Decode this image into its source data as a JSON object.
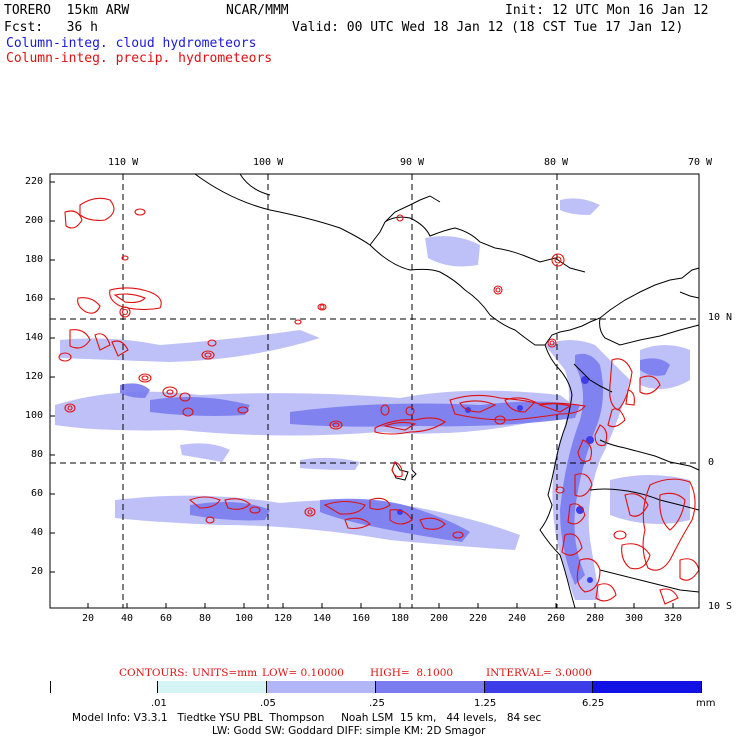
{
  "header": {
    "model": "TORERO  15km ARW",
    "org": "NCAR/MMM",
    "init": "Init: 12 UTC Mon 16 Jan 12",
    "fcst": "Fcst:   36 h",
    "valid": "Valid: 00 UTC Wed 18 Jan 12 (18 CST Tue 17 Jan 12)",
    "field1": "Column-integ. cloud hydrometeors",
    "field2": "Column-integ. precip. hydrometeors"
  },
  "colors": {
    "cloud": "#1a1ad6",
    "precip": "#e01010"
  },
  "map": {
    "lon_labels": [
      "110 W",
      "100 W",
      "90 W",
      "80 W",
      "70 W"
    ],
    "lat_labels": [
      "10 N",
      "0",
      "10 S"
    ],
    "y_ticks": [
      "220",
      "200",
      "180",
      "160",
      "140",
      "120",
      "100",
      "80",
      "60",
      "40",
      "20"
    ],
    "x_ticks": [
      "20",
      "40",
      "60",
      "80",
      "100",
      "120",
      "140",
      "160",
      "180",
      "200",
      "220",
      "240",
      "260",
      "280",
      "300",
      "320"
    ]
  },
  "contour_info": {
    "label": "CONTOURS:",
    "units": "UNITS=mm",
    "low": "LOW= 0.10000",
    "high": "HIGH=  8.1000",
    "interval": "INTERVAL= 3.0000"
  },
  "colorbar": {
    "labels": [
      ".01",
      ".05",
      ".25",
      "1.25",
      "6.25"
    ],
    "unit": "mm",
    "colors": [
      "#ffffff",
      "#d4f4f6",
      "#b3b6f6",
      "#7a7cf0",
      "#3e3ee8",
      "#1212e6"
    ]
  },
  "model_info": {
    "line1": "Model Info: V3.3.1   Tiedtke YSU PBL  Thompson     Noah LSM  15 km,   44 levels,   84 sec",
    "line2": "LW: Godd SW: Goddard DIFF: simple KM: 2D Smagor"
  }
}
